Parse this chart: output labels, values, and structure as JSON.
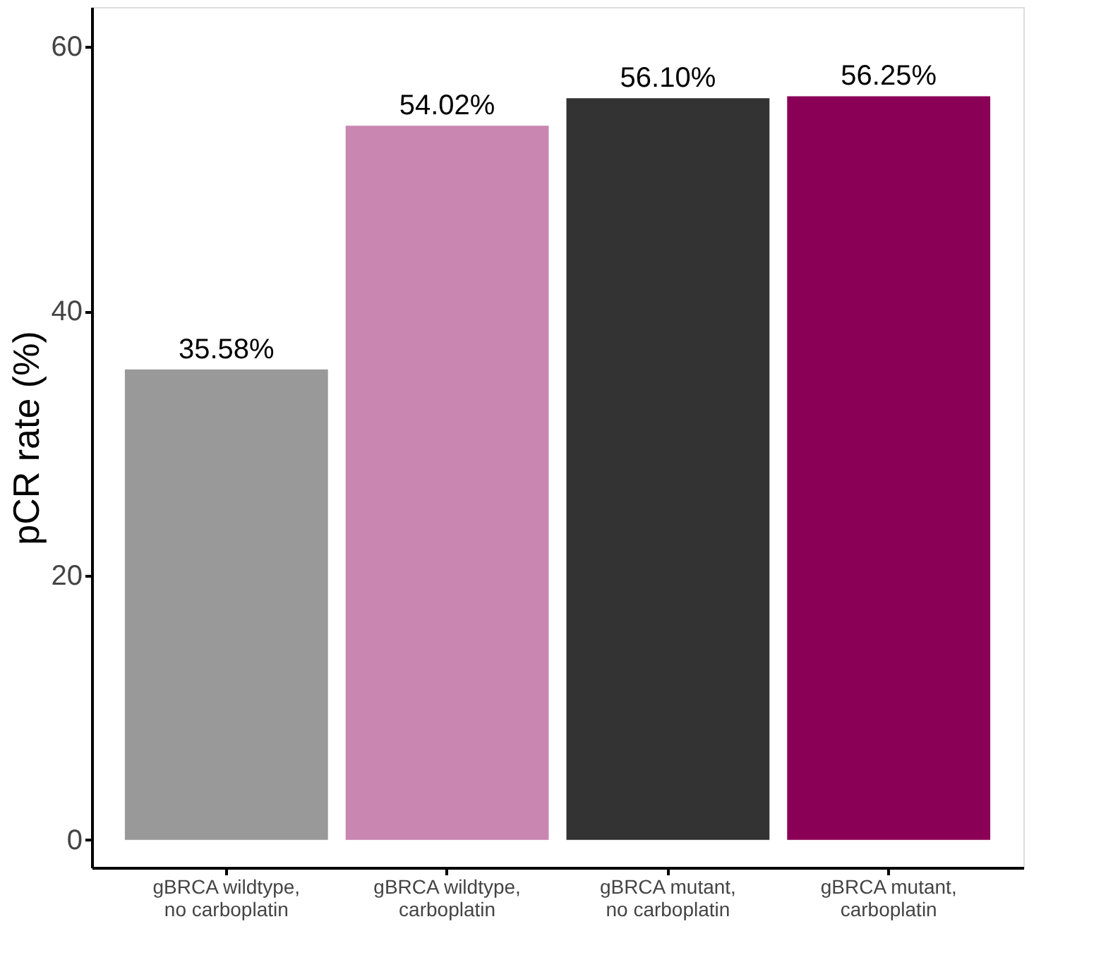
{
  "chart_data": {
    "type": "bar",
    "ylabel": "pCR rate (%)",
    "categories": [
      "gBRCA wildtype,\nno carboplatin",
      "gBRCA wildtype,\ncarboplatin",
      "gBRCA mutant,\nno carboplatin",
      "gBRCA mutant,\ncarboplatin"
    ],
    "values": [
      35.58,
      54.02,
      56.1,
      56.25
    ],
    "colors": [
      "#999999",
      "#c986b1",
      "#333333",
      "#8b0057"
    ],
    "value_labels": [
      "35.58%",
      "54.02%",
      "56.10%",
      "56.25%"
    ],
    "ylim": [
      -2.1,
      63
    ],
    "yticks": [
      0,
      20,
      40,
      60
    ],
    "grid": false
  }
}
